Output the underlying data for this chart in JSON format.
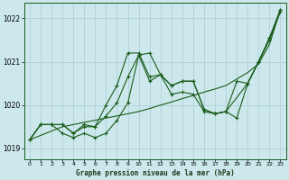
{
  "title": "Graphe pression niveau de la mer (hPa)",
  "background_color": "#cce8ec",
  "grid_color": "#b0d0d8",
  "line_color": "#1a5c1a",
  "ylim": [
    1018.75,
    1022.35
  ],
  "xlim": [
    -0.5,
    23.5
  ],
  "yticks": [
    1019,
    1020,
    1021,
    1022
  ],
  "xticks": [
    0,
    1,
    2,
    3,
    4,
    5,
    6,
    7,
    8,
    9,
    10,
    11,
    12,
    13,
    14,
    15,
    16,
    17,
    18,
    19,
    20,
    21,
    22,
    23
  ],
  "series1_x": [
    0,
    1,
    2,
    3,
    4,
    5,
    6,
    7,
    8,
    9,
    10,
    11,
    12,
    13,
    14,
    15,
    16,
    17,
    18,
    19,
    20,
    21,
    22,
    23
  ],
  "series1_y": [
    1019.2,
    1019.55,
    1019.55,
    1019.55,
    1019.35,
    1019.5,
    1019.5,
    1020.0,
    1020.45,
    1021.2,
    1021.2,
    1020.65,
    1020.7,
    1020.45,
    1020.55,
    1020.55,
    1019.9,
    1019.8,
    1019.85,
    1020.55,
    1020.5,
    1021.0,
    1021.55,
    1022.2
  ],
  "series2_x": [
    0,
    1,
    2,
    3,
    4,
    5,
    6,
    7,
    8,
    9,
    10,
    11,
    12,
    13,
    14,
    15,
    16,
    17,
    18,
    19,
    20,
    21,
    22,
    23
  ],
  "series2_y": [
    1019.2,
    1019.55,
    1019.55,
    1019.55,
    1019.35,
    1019.55,
    1019.5,
    1019.75,
    1020.05,
    1020.65,
    1021.15,
    1020.55,
    1020.7,
    1020.25,
    1020.3,
    1020.25,
    1019.85,
    1019.8,
    1019.85,
    1019.7,
    1020.5,
    1021.0,
    1021.5,
    1022.15
  ],
  "series3_x": [
    0,
    1,
    2,
    3,
    4,
    5,
    6,
    7,
    8,
    9,
    10,
    11,
    12,
    13,
    14,
    15,
    16,
    17,
    18,
    20,
    21,
    22,
    23
  ],
  "series3_y": [
    1019.2,
    1019.55,
    1019.55,
    1019.35,
    1019.25,
    1019.35,
    1019.25,
    1019.35,
    1019.65,
    1020.05,
    1021.15,
    1021.2,
    1020.7,
    1020.45,
    1020.55,
    1020.55,
    1019.9,
    1019.8,
    1019.85,
    1020.5,
    1021.0,
    1021.55,
    1022.2
  ],
  "series4_x": [
    0,
    1,
    2,
    3,
    4,
    5,
    6,
    7,
    8,
    9,
    10,
    11,
    12,
    13,
    14,
    15,
    16,
    17,
    18,
    19,
    20,
    21,
    22,
    23
  ],
  "series4_y": [
    1019.2,
    1019.3,
    1019.4,
    1019.5,
    1019.55,
    1019.6,
    1019.65,
    1019.7,
    1019.75,
    1019.8,
    1019.85,
    1019.92,
    1020.0,
    1020.07,
    1020.15,
    1020.22,
    1020.3,
    1020.37,
    1020.45,
    1020.6,
    1020.75,
    1020.95,
    1021.4,
    1022.2
  ]
}
